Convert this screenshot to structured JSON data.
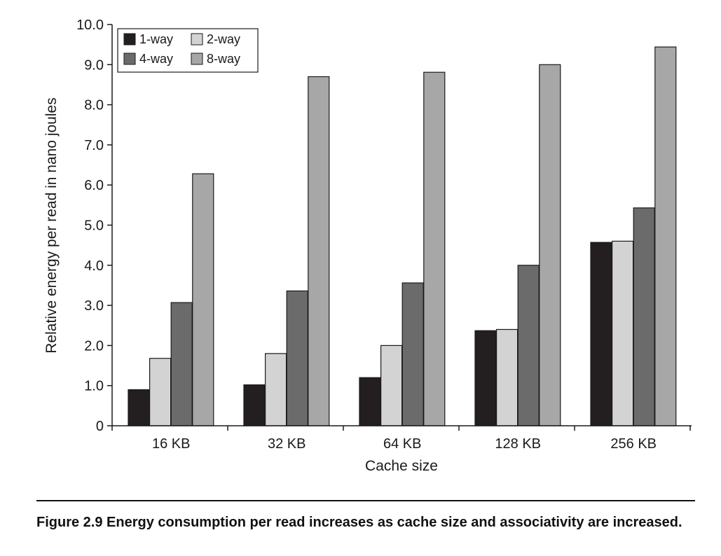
{
  "chart_data": {
    "type": "bar",
    "title": "",
    "xlabel": "Cache size",
    "ylabel": "Relative energy per read in nano joules",
    "categories": [
      "16 KB",
      "32 KB",
      "64 KB",
      "128 KB",
      "256 KB"
    ],
    "ylim": [
      0,
      10
    ],
    "yticks": [
      0,
      1,
      2,
      3,
      4,
      5,
      6,
      7,
      8,
      9,
      10
    ],
    "ytick_labels": [
      "0",
      "1.0",
      "2.0",
      "3.0",
      "4.0",
      "5.0",
      "6.0",
      "7.0",
      "8.0",
      "9.0",
      "10.0"
    ],
    "grid": false,
    "legend_position": "top-left",
    "series": [
      {
        "name": "1-way",
        "color": "#231f20",
        "values": [
          0.9,
          1.02,
          1.2,
          2.37,
          4.57
        ]
      },
      {
        "name": "2-way",
        "color": "#d3d3d3",
        "values": [
          1.68,
          1.8,
          2.0,
          2.4,
          4.6
        ]
      },
      {
        "name": "4-way",
        "color": "#6b6b6b",
        "values": [
          3.07,
          3.36,
          3.56,
          4.0,
          5.43
        ]
      },
      {
        "name": "8-way",
        "color": "#a7a7a7",
        "values": [
          6.28,
          8.7,
          8.81,
          9.0,
          9.44
        ]
      }
    ]
  },
  "caption": {
    "label": "Figure 2.9",
    "text": "Energy consumption per read increases as cache size and associativity are increased."
  }
}
